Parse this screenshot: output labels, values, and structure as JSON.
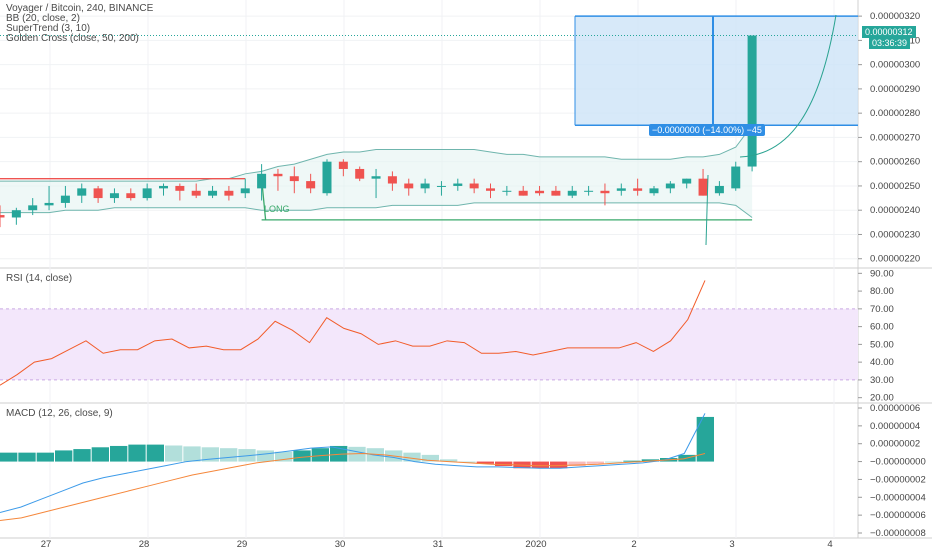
{
  "legend": {
    "symbol": "Voyager / Bitcoin, 240, BINANCE",
    "bb": "BB (20, close, 2)",
    "supertrend": "SuperTrend (3, 10)",
    "golden_cross": "Golden Cross (close, 50, 200)"
  },
  "rsi_label": "RSI (14, close)",
  "macd_label": "MACD (12, 26, close, 9)",
  "price_axis": {
    "ticks": [
      "0.00000320",
      "0.00000310",
      "0.00000300",
      "0.00000290",
      "0.00000280",
      "0.00000270",
      "0.00000260",
      "0.00000250",
      "0.00000240",
      "0.00000230",
      "0.00000220"
    ],
    "last_price": "0.00000312",
    "countdown": "03:36:39"
  },
  "rsi_axis": {
    "ticks": [
      "90.00",
      "80.00",
      "70.00",
      "60.00",
      "50.00",
      "40.00",
      "30.00",
      "20.00"
    ]
  },
  "macd_axis": {
    "ticks": [
      "0.00000006",
      "0.00000004",
      "0.00000002",
      "−0.00000000",
      "−0.00000002",
      "−0.00000004",
      "−0.00000006",
      "−0.00000008"
    ]
  },
  "time_axis": {
    "ticks": [
      "27",
      "28",
      "29",
      "30",
      "31",
      "2020",
      "2",
      "3",
      "4"
    ]
  },
  "position": {
    "label": "LONG",
    "measure_label": "−0.0000000 (−14.00%) −45"
  },
  "colors": {
    "up": "#26a69a",
    "down": "#ef5350",
    "rsi_line": "#f25c2a",
    "macd_line": "#3d9be9",
    "signal_line": "#f5873b",
    "bb": "#6fb5ad",
    "supertrend_up": "#3aa96b",
    "supertrend_down": "#ef5350",
    "box": "#cde4f8",
    "box_border": "#2f8ee5"
  },
  "chart_data": [
    {
      "type": "candlestick",
      "title": "Voyager / Bitcoin, 240, BINANCE",
      "x": [
        "27",
        "",
        "",
        "",
        "",
        "",
        "28",
        "",
        "",
        "",
        "",
        "",
        "29",
        "",
        "",
        "",
        "",
        "",
        "30",
        "",
        "",
        "",
        "",
        "",
        "31",
        "",
        "",
        "",
        "",
        "",
        "2020",
        "",
        "",
        "",
        "",
        "",
        "2",
        "",
        "",
        "",
        "",
        ""
      ],
      "candles": [
        {
          "o": 2.38,
          "h": 2.42,
          "l": 2.33,
          "c": 2.37
        },
        {
          "o": 2.37,
          "h": 2.41,
          "l": 2.34,
          "c": 2.4
        },
        {
          "o": 2.4,
          "h": 2.45,
          "l": 2.38,
          "c": 2.42
        },
        {
          "o": 2.42,
          "h": 2.5,
          "l": 2.4,
          "c": 2.43
        },
        {
          "o": 2.43,
          "h": 2.5,
          "l": 2.41,
          "c": 2.46
        },
        {
          "o": 2.46,
          "h": 2.51,
          "l": 2.43,
          "c": 2.49
        },
        {
          "o": 2.49,
          "h": 2.5,
          "l": 2.43,
          "c": 2.45
        },
        {
          "o": 2.45,
          "h": 2.49,
          "l": 2.43,
          "c": 2.47
        },
        {
          "o": 2.47,
          "h": 2.49,
          "l": 2.44,
          "c": 2.45
        },
        {
          "o": 2.45,
          "h": 2.51,
          "l": 2.44,
          "c": 2.49
        },
        {
          "o": 2.49,
          "h": 2.51,
          "l": 2.46,
          "c": 2.5
        },
        {
          "o": 2.5,
          "h": 2.51,
          "l": 2.44,
          "c": 2.48
        },
        {
          "o": 2.48,
          "h": 2.51,
          "l": 2.45,
          "c": 2.46
        },
        {
          "o": 2.46,
          "h": 2.5,
          "l": 2.45,
          "c": 2.48
        },
        {
          "o": 2.48,
          "h": 2.5,
          "l": 2.44,
          "c": 2.46
        },
        {
          "o": 2.47,
          "h": 2.53,
          "l": 2.45,
          "c": 2.49
        },
        {
          "o": 2.49,
          "h": 2.59,
          "l": 2.44,
          "c": 2.55
        },
        {
          "o": 2.55,
          "h": 2.57,
          "l": 2.48,
          "c": 2.54
        },
        {
          "o": 2.54,
          "h": 2.58,
          "l": 2.47,
          "c": 2.52
        },
        {
          "o": 2.52,
          "h": 2.55,
          "l": 2.47,
          "c": 2.49
        },
        {
          "o": 2.47,
          "h": 2.61,
          "l": 2.46,
          "c": 2.6
        },
        {
          "o": 2.6,
          "h": 2.61,
          "l": 2.54,
          "c": 2.57
        },
        {
          "o": 2.57,
          "h": 2.58,
          "l": 2.52,
          "c": 2.53
        },
        {
          "o": 2.53,
          "h": 2.57,
          "l": 2.45,
          "c": 2.54
        },
        {
          "o": 2.54,
          "h": 2.56,
          "l": 2.48,
          "c": 2.51
        },
        {
          "o": 2.51,
          "h": 2.53,
          "l": 2.46,
          "c": 2.49
        },
        {
          "o": 2.49,
          "h": 2.53,
          "l": 2.47,
          "c": 2.51
        },
        {
          "o": 2.5,
          "h": 2.52,
          "l": 2.46,
          "c": 2.5
        },
        {
          "o": 2.5,
          "h": 2.53,
          "l": 2.48,
          "c": 2.51
        },
        {
          "o": 2.51,
          "h": 2.53,
          "l": 2.47,
          "c": 2.49
        },
        {
          "o": 2.49,
          "h": 2.51,
          "l": 2.45,
          "c": 2.48
        },
        {
          "o": 2.48,
          "h": 2.5,
          "l": 2.46,
          "c": 2.48
        },
        {
          "o": 2.48,
          "h": 2.5,
          "l": 2.46,
          "c": 2.46
        },
        {
          "o": 2.48,
          "h": 2.5,
          "l": 2.46,
          "c": 2.47
        },
        {
          "o": 2.48,
          "h": 2.5,
          "l": 2.46,
          "c": 2.46
        },
        {
          "o": 2.46,
          "h": 2.5,
          "l": 2.45,
          "c": 2.48
        },
        {
          "o": 2.48,
          "h": 2.5,
          "l": 2.46,
          "c": 2.48
        },
        {
          "o": 2.48,
          "h": 2.51,
          "l": 2.42,
          "c": 2.47
        },
        {
          "o": 2.48,
          "h": 2.51,
          "l": 2.46,
          "c": 2.49
        },
        {
          "o": 2.49,
          "h": 2.53,
          "l": 2.46,
          "c": 2.48
        },
        {
          "o": 2.47,
          "h": 2.5,
          "l": 2.46,
          "c": 2.49
        },
        {
          "o": 2.49,
          "h": 2.52,
          "l": 2.47,
          "c": 2.51
        },
        {
          "o": 2.51,
          "h": 2.53,
          "l": 2.49,
          "c": 2.53
        },
        {
          "o": 2.53,
          "h": 2.57,
          "l": 2.46,
          "c": 2.46
        },
        {
          "o": 2.47,
          "h": 2.52,
          "l": 2.46,
          "c": 2.5
        },
        {
          "o": 2.49,
          "h": 2.6,
          "l": 2.48,
          "c": 2.58
        },
        {
          "o": 2.58,
          "h": 3.12,
          "l": 2.56,
          "c": 3.12
        }
      ],
      "ylim": [
        2.17,
        3.25
      ],
      "y_unit": "1e-6",
      "bb_upper": [
        2.52,
        2.52,
        2.52,
        2.52,
        2.52,
        2.52,
        2.52,
        2.52,
        2.52,
        2.52,
        2.52,
        2.52,
        2.52,
        2.53,
        2.53,
        2.55,
        2.56,
        2.58,
        2.59,
        2.61,
        2.63,
        2.64,
        2.64,
        2.65,
        2.65,
        2.65,
        2.65,
        2.65,
        2.65,
        2.65,
        2.64,
        2.63,
        2.63,
        2.62,
        2.62,
        2.62,
        2.62,
        2.62,
        2.61,
        2.61,
        2.61,
        2.61,
        2.62,
        2.62,
        2.63,
        2.66,
        2.75
      ],
      "bb_lower": [
        2.39,
        2.39,
        2.39,
        2.39,
        2.4,
        2.4,
        2.4,
        2.41,
        2.41,
        2.41,
        2.41,
        2.41,
        2.41,
        2.41,
        2.41,
        2.41,
        2.4,
        2.4,
        2.4,
        2.4,
        2.41,
        2.41,
        2.41,
        2.41,
        2.42,
        2.42,
        2.42,
        2.42,
        2.42,
        2.43,
        2.43,
        2.43,
        2.43,
        2.43,
        2.43,
        2.43,
        2.43,
        2.43,
        2.43,
        2.43,
        2.43,
        2.43,
        2.43,
        2.43,
        2.43,
        2.42,
        2.37
      ],
      "supertrend": [
        2.53,
        2.53,
        2.53,
        2.53,
        2.53,
        2.53,
        2.53,
        2.53,
        2.53,
        2.53,
        2.53,
        2.53,
        2.53,
        2.53,
        2.53,
        2.53,
        2.36,
        2.36,
        2.36,
        2.36,
        2.36,
        2.36,
        2.36,
        2.36,
        2.36,
        2.36,
        2.36,
        2.36,
        2.36,
        2.36,
        2.36,
        2.36,
        2.36,
        2.36,
        2.36,
        2.36,
        2.36,
        2.36,
        2.36,
        2.36,
        2.36,
        2.36,
        2.36,
        2.36,
        2.36,
        2.36,
        2.36
      ],
      "supertrend_flip_index": 16,
      "position_box": {
        "entry": 2.75,
        "top": 3.2,
        "from_index": 36,
        "to_index": 55
      }
    },
    {
      "type": "line",
      "title": "RSI (14, close)",
      "values": [
        27,
        33,
        40,
        42,
        47,
        52,
        45,
        47,
        47,
        52,
        53,
        48,
        49,
        47,
        47,
        53,
        63,
        58,
        51,
        65,
        59,
        56,
        50,
        52,
        49,
        49,
        52,
        51,
        45,
        45,
        46,
        44,
        46,
        48,
        48,
        48,
        48,
        51,
        46,
        52,
        64,
        86
      ],
      "ylim": [
        17,
        93
      ],
      "band": [
        30,
        70
      ]
    },
    {
      "type": "bar+line",
      "title": "MACD (12, 26, close, 9)",
      "histogram": [
        0.2,
        0.2,
        0.2,
        0.25,
        0.28,
        0.32,
        0.35,
        0.38,
        0.38,
        0.36,
        0.34,
        0.32,
        0.3,
        0.28,
        0.25,
        0.22,
        0.25,
        0.3,
        0.35,
        0.33,
        0.3,
        0.25,
        0.2,
        0.15,
        0.05,
        0,
        -0.05,
        -0.1,
        -0.15,
        -0.15,
        -0.15,
        -0.1,
        -0.05,
        0,
        0.02,
        0.05,
        0.08,
        0.15,
        1.0
      ],
      "macd": [
        -1.9,
        -1.7,
        -1.4,
        -1.1,
        -0.8,
        -0.6,
        -0.45,
        -0.3,
        -0.15,
        0,
        0.08,
        0.15,
        0.22,
        0.3,
        0.4,
        0.5,
        0.55,
        0.4,
        0.25,
        0.15,
        0.0,
        -0.1,
        -0.15,
        -0.2,
        -0.2,
        -0.22,
        -0.25,
        -0.25,
        -0.2,
        -0.15,
        -0.1,
        -0.05,
        0.05,
        0.3,
        1.8
      ],
      "signal": [
        -2.2,
        -2.1,
        -1.9,
        -1.7,
        -1.5,
        -1.3,
        -1.1,
        -0.9,
        -0.7,
        -0.5,
        -0.35,
        -0.2,
        -0.05,
        0.05,
        0.15,
        0.22,
        0.28,
        0.3,
        0.25,
        0.15,
        0.05,
        0.0,
        -0.05,
        -0.1,
        -0.12,
        -0.15,
        -0.15,
        -0.13,
        -0.1,
        -0.05,
        0.0,
        0.05,
        0.1,
        0.3
      ],
      "ylim": [
        -0.8,
        0.6
      ],
      "y_unit": "1e-5"
    }
  ]
}
